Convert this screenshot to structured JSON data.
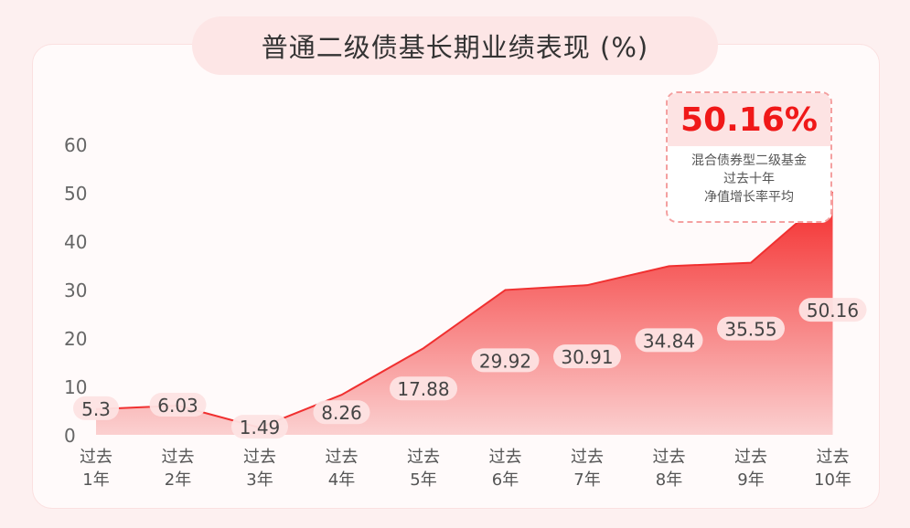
{
  "chart_data": {
    "type": "area",
    "title": "普通二级债基长期业绩表现 (%)",
    "categories": [
      [
        "过去",
        "1年"
      ],
      [
        "过去",
        "2年"
      ],
      [
        "过去",
        "3年"
      ],
      [
        "过去",
        "4年"
      ],
      [
        "过去",
        "5年"
      ],
      [
        "过去",
        "6年"
      ],
      [
        "过去",
        "7年"
      ],
      [
        "过去",
        "8年"
      ],
      [
        "过去",
        "9年"
      ],
      [
        "过去",
        "10年"
      ]
    ],
    "values": [
      5.3,
      6.03,
      1.49,
      8.26,
      17.88,
      29.92,
      30.91,
      34.84,
      35.55,
      50.16
    ],
    "labels": [
      "5.3",
      "6.03",
      "1.49",
      "8.26",
      "17.88",
      "29.92",
      "30.91",
      "34.84",
      "35.55",
      "50.16"
    ],
    "yticks": [
      "0",
      "10",
      "20",
      "30",
      "40",
      "50",
      "60"
    ],
    "ylim": [
      0,
      60
    ],
    "grid": false,
    "colors": {
      "fill_top": "#f42a2a",
      "fill_bottom": "#fbd0d0",
      "accent": "#f01818"
    }
  },
  "callout": {
    "value": "50.16%",
    "lines": [
      "混合债券型二级基金",
      "过去十年",
      "净值增长率平均"
    ]
  }
}
